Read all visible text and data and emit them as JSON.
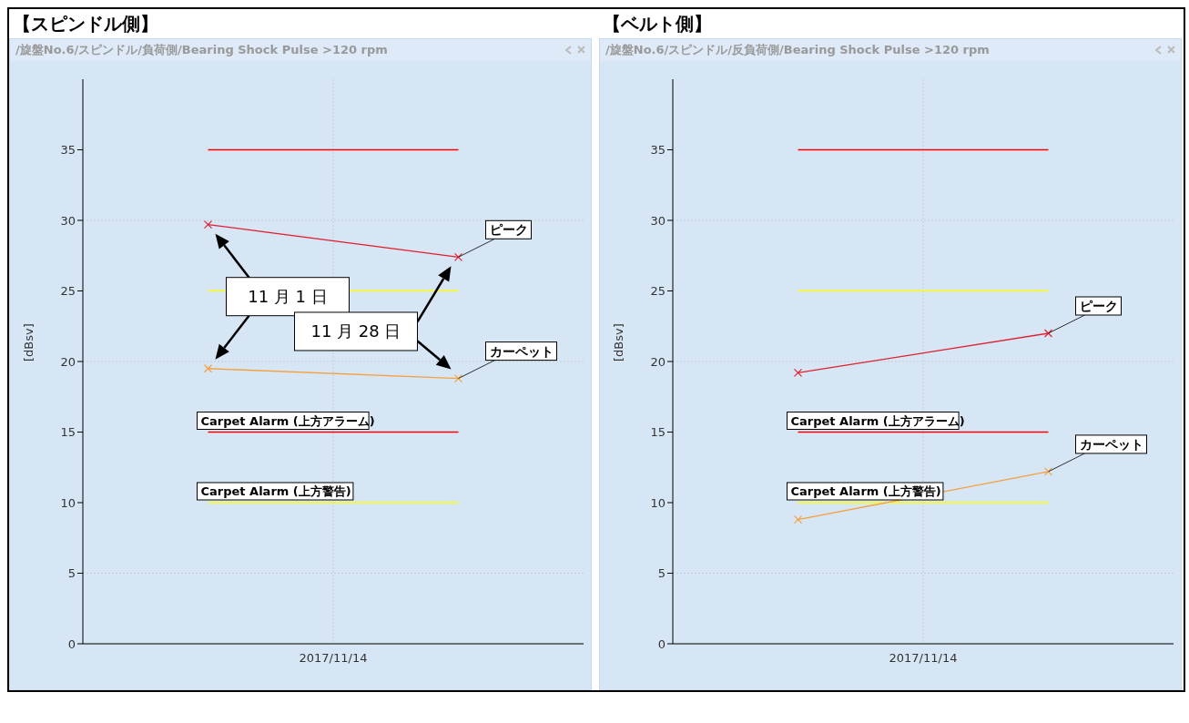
{
  "chart_data": [
    {
      "type": "line",
      "title": "【スピンドル側】",
      "subtitle": "/旋盤No.6/スピンドル/負荷側/Bearing Shock Pulse >120 rpm",
      "ylabel": "[dBsv]",
      "categories": [
        null,
        null
      ],
      "series": [
        {
          "color": "#e02030",
          "values": [
            29.7,
            27.4
          ]
        },
        {
          "color": "#f5a040",
          "values": [
            19.5,
            18.8
          ]
        }
      ],
      "ylim": [
        0,
        40
      ],
      "yticks": [
        0,
        5,
        10,
        15,
        20,
        25,
        30,
        35
      ],
      "grid": true,
      "legend": false,
      "marker": "cross",
      "line_style": "solid",
      "ref_lines": [
        {
          "axis": "y",
          "value": 35,
          "color": "#ff0000"
        },
        {
          "axis": "y",
          "value": 25,
          "color": "#ffff00"
        },
        {
          "axis": "y",
          "value": 15,
          "color": "#ff0000",
          "label": "Carpet Alarm (上方アラーム)"
        },
        {
          "axis": "y",
          "value": 10,
          "color": "#ffff00",
          "label": "Carpet Alarm (上方警告)"
        }
      ],
      "annotations": [
        "2017/11/14",
        "ピーク",
        "カーペット",
        "11 月 1 日",
        "11 月 28 日"
      ]
    },
    {
      "type": "line",
      "title": "【ベルト側】",
      "subtitle": "/旋盤No.6/スピンドル/反負荷側/Bearing Shock Pulse >120 rpm",
      "ylabel": "[dBsv]",
      "categories": [
        null,
        null
      ],
      "series": [
        {
          "color": "#e02030",
          "values": [
            19.2,
            22.0
          ]
        },
        {
          "color": "#f5a040",
          "values": [
            8.8,
            12.2
          ]
        }
      ],
      "ylim": [
        0,
        40
      ],
      "yticks": [
        0,
        5,
        10,
        15,
        20,
        25,
        30,
        35
      ],
      "grid": true,
      "legend": false,
      "marker": "cross",
      "line_style": "solid",
      "ref_lines": [
        {
          "axis": "y",
          "value": 35,
          "color": "#ff0000"
        },
        {
          "axis": "y",
          "value": 25,
          "color": "#ffff00"
        },
        {
          "axis": "y",
          "value": 15,
          "color": "#ff0000",
          "label": "Carpet Alarm (上方アラーム)"
        },
        {
          "axis": "y",
          "value": 10,
          "color": "#ffff00",
          "label": "Carpet Alarm (上方警告)"
        }
      ],
      "annotations": [
        "2017/11/14",
        "ピーク",
        "カーペット"
      ]
    }
  ]
}
